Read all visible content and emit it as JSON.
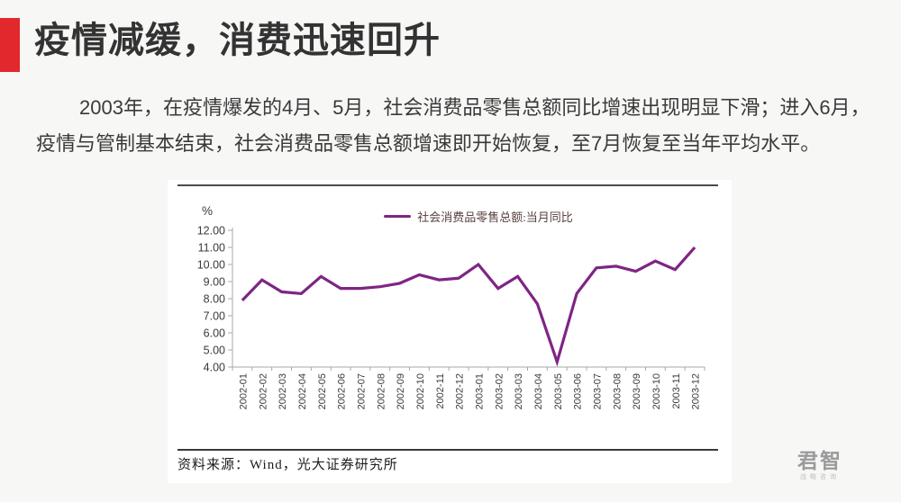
{
  "slide": {
    "title": "疫情减缓，消费迅速回升",
    "body": {
      "lines": [
        "2003年，在疫情爆发的4月、5月，社会消费品零售总额同比增速出现明显下滑；进入6月，",
        "疫情与管制基本结束，社会消费品零售总额增速即开始恢复，至7月恢复至当年平均水平。"
      ]
    },
    "colors": {
      "accent_red": "#e3282d",
      "title_text": "#333333",
      "slide_background": "#f7f7f6",
      "chart_background": "#ffffff"
    }
  },
  "chart_data": {
    "type": "line",
    "unit_label": "%",
    "legend": "社会消费品零售总额:当月同比",
    "legend_position": "top-center",
    "source": "资料来源：Wind，光大证券研究所",
    "categories": [
      "2002-01",
      "2002-02",
      "2002-03",
      "2002-04",
      "2002-05",
      "2002-06",
      "2002-07",
      "2002-08",
      "2002-09",
      "2002-10",
      "2002-11",
      "2002-12",
      "2003-01",
      "2003-02",
      "2003-03",
      "2003-04",
      "2003-05",
      "2003-06",
      "2003-07",
      "2003-08",
      "2003-09",
      "2003-10",
      "2003-11",
      "2003-12"
    ],
    "series": [
      {
        "name": "社会消费品零售总额:当月同比",
        "values": [
          7.9,
          9.1,
          8.4,
          8.3,
          9.3,
          8.6,
          8.6,
          8.7,
          8.9,
          9.4,
          9.1,
          9.2,
          10.0,
          8.6,
          9.3,
          7.7,
          4.3,
          8.3,
          9.8,
          9.9,
          9.6,
          10.2,
          9.7,
          11.0
        ]
      }
    ],
    "ylim": [
      4.0,
      12.0
    ],
    "ytick_step": 1.0,
    "ytick_labels": [
      "12.00",
      "11.00",
      "10.00",
      "9.00",
      "8.00",
      "7.00",
      "6.00",
      "5.00",
      "4.00"
    ],
    "grid": false,
    "line_color": "#7e2585",
    "axis_color": "#a8a8a8",
    "tick_label_color": "#3a3a3a"
  },
  "logo": {
    "name": "君智",
    "subtitle": "战略咨询"
  }
}
